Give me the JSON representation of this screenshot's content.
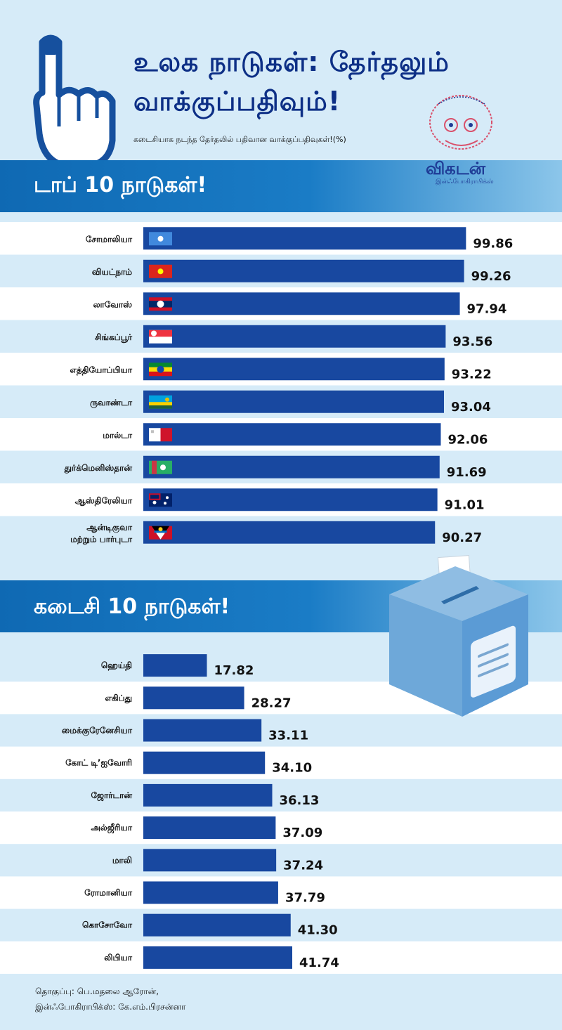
{
  "header": {
    "title_line1": "உலக நாடுகள்: தேர்தலும்",
    "title_line2": "வாக்குப்பதிவும்!",
    "subtitle": "கடைசியாக நடந்த தேர்தலில் பதிவான வாக்குப்பதிவுகள்!(%)",
    "brand": "விகடன்",
    "brand_sub": "இன்ஃபோகிராபிக்ஸ்"
  },
  "footer": {
    "line1": "தொகுப்பு: பெ.மதலை ஆரோன்,",
    "line2": "இன்ஃபோகிராபிக்ஸ்: கே.எம்.பிரசன்னா"
  },
  "colors": {
    "bar": "#1848a0",
    "background": "#d6ebf8",
    "row_alt": "#ffffff",
    "title": "#0d2f86"
  },
  "icons": [
    "voting-finger-icon",
    "ballot-box-icon",
    "vikatan-logo-icon"
  ],
  "chart_data": [
    {
      "type": "bar",
      "orientation": "horizontal",
      "title": "டாப் 10 நாடுகள்!",
      "categories": [
        "சோமாலியா",
        "வியட்நாம்",
        "லாவோஸ்",
        "சிங்கப்பூர்",
        "எத்தியோப்பியா",
        "ருவாண்டா",
        "மால்டா",
        "துர்க்மெனிஸ்தான்",
        "ஆஸ்திரேலியா",
        "ஆன்டிகுவா மற்றும் பார்புடா"
      ],
      "category_lines": [
        [
          "சோமாலியா"
        ],
        [
          "வியட்நாம்"
        ],
        [
          "லாவோஸ்"
        ],
        [
          "சிங்கப்பூர்"
        ],
        [
          "எத்தியோப்பியா"
        ],
        [
          "ருவாண்டா"
        ],
        [
          "மால்டா"
        ],
        [
          "துர்க்மெனிஸ்தான்"
        ],
        [
          "ஆஸ்திரேலியா"
        ],
        [
          "ஆன்டிகுவா",
          "மற்றும் பார்புடா"
        ]
      ],
      "values": [
        99.86,
        99.26,
        97.94,
        93.56,
        93.22,
        93.04,
        92.06,
        91.69,
        91.01,
        90.27
      ],
      "value_labels": [
        "99.86",
        "99.26",
        "97.94",
        "93.56",
        "93.22",
        "93.04",
        "92.06",
        "91.69",
        "91.01",
        "90.27"
      ],
      "flags": [
        "flag-somalia-icon",
        "flag-vietnam-icon",
        "flag-laos-icon",
        "flag-singapore-icon",
        "flag-ethiopia-icon",
        "flag-rwanda-icon",
        "flag-malta-icon",
        "flag-turkmenistan-icon",
        "flag-australia-icon",
        "flag-antigua-icon"
      ],
      "xlim": [
        0,
        100
      ],
      "xlabel": "",
      "ylabel": ""
    },
    {
      "type": "bar",
      "orientation": "horizontal",
      "title": "கடைசி 10 நாடுகள்!",
      "categories": [
        "ஹெய்தி",
        "எகிப்து",
        "மைக்குரேனேசியா",
        "கோட் டி’ஐவோரி",
        "ஜோர்டான்",
        "அல்ஜீரியா",
        "மாலி",
        "ரோமானியா",
        "கொசோவோ",
        "லிபியா"
      ],
      "category_lines": [
        [
          "ஹெய்தி"
        ],
        [
          "எகிப்து"
        ],
        [
          "மைக்குரேனேசியா"
        ],
        [
          "கோட் டி’ஐவோரி"
        ],
        [
          "ஜோர்டான்"
        ],
        [
          "அல்ஜீரியா"
        ],
        [
          "மாலி"
        ],
        [
          "ரோமானியா"
        ],
        [
          "கொசோவோ"
        ],
        [
          "லிபியா"
        ]
      ],
      "values": [
        17.82,
        28.27,
        33.11,
        34.1,
        36.13,
        37.09,
        37.24,
        37.79,
        41.3,
        41.74
      ],
      "value_labels": [
        "17.82",
        "28.27",
        "33.11",
        "34.10",
        "36.13",
        "37.09",
        "37.24",
        "37.79",
        "41.30",
        "41.74"
      ],
      "xlim": [
        0,
        100
      ],
      "xlabel": "",
      "ylabel": ""
    }
  ]
}
